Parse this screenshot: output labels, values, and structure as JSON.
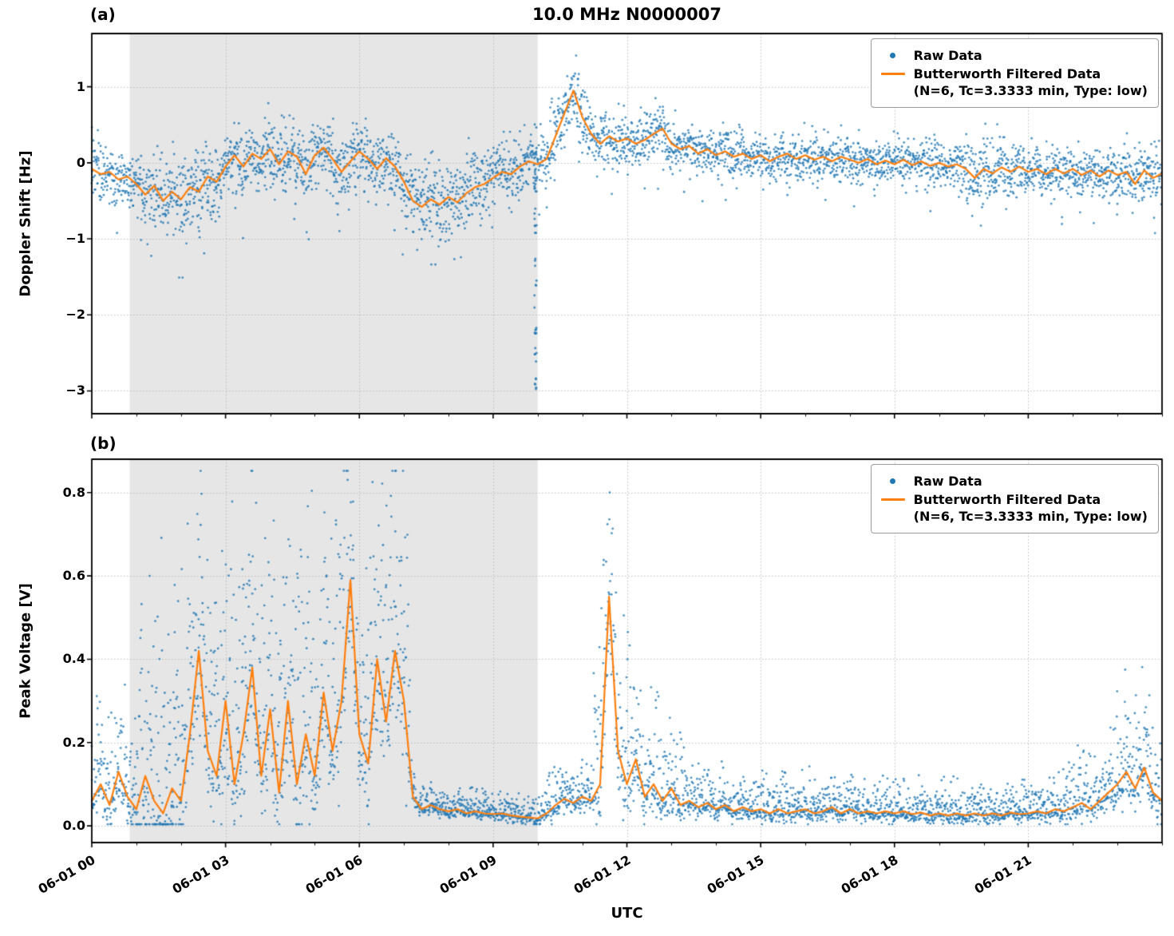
{
  "figure": {
    "title": "10.0 MHz N0000007",
    "xlabel": "UTC"
  },
  "panels": {
    "a": {
      "tag": "(a)",
      "ylabel": "Doppler Shift [Hz]"
    },
    "b": {
      "tag": "(b)",
      "ylabel": "Peak Voltage [V]"
    }
  },
  "legend": {
    "raw_label": "Raw Data",
    "filtered_label_line1": "Butterworth Filtered Data",
    "filtered_label_line2": "(N=6, Tc=3.3333 min, Type: low)"
  },
  "chart_data": [
    {
      "type": "scatter",
      "panel": "a",
      "title": "10.0 MHz N0000007",
      "ylabel": "Doppler Shift [Hz]",
      "xlabel": "",
      "x_unit": "hours UTC on 06-01",
      "xlim": [
        0,
        24
      ],
      "ylim": [
        -3.3,
        1.7
      ],
      "xticks": [
        0,
        3,
        6,
        9,
        12,
        15,
        18,
        21
      ],
      "xtick_labels": [
        "06-01 00",
        "06-01 03",
        "06-01 06",
        "06-01 09",
        "06-01 12",
        "06-01 15",
        "06-01 18",
        "06-01 21"
      ],
      "yticks": [
        1,
        0,
        -1,
        -2,
        -3
      ],
      "ytick_labels": [
        "1",
        "0",
        "−1",
        "−2",
        "−3"
      ],
      "show_xtick_labels": false,
      "grid": true,
      "legend_position": "upper right",
      "shaded_region": {
        "x0": 0.85,
        "x1": 10.0,
        "color": "#e6e6e6"
      },
      "noise_segments": [
        [
          0,
          0.9,
          0.22
        ],
        [
          0.9,
          2.5,
          0.27
        ],
        [
          2.5,
          6.9,
          0.25
        ],
        [
          6.9,
          9.0,
          0.28
        ],
        [
          9.0,
          10.25,
          0.22
        ],
        [
          10.25,
          11.2,
          0.28
        ],
        [
          11.2,
          13.2,
          0.22
        ],
        [
          13.2,
          19.4,
          0.17
        ],
        [
          19.4,
          20.6,
          0.24
        ],
        [
          20.6,
          23.0,
          0.17
        ],
        [
          23.0,
          24.01,
          0.21
        ]
      ],
      "dropout": {
        "x": 9.95,
        "y_top": 0.55,
        "y_bottom": -3.15,
        "count": 48,
        "width": 0.05
      },
      "series": [
        {
          "name": "Raw Data",
          "type": "scatter",
          "color": "#1f77b4"
        },
        {
          "name": "Butterworth Filtered Data (N=6, Tc=3.3333 min, Type: low)",
          "type": "line",
          "color": "#ff7f0e",
          "x_start": 0,
          "x_step": 0.2,
          "y": [
            -0.08,
            -0.15,
            -0.12,
            -0.22,
            -0.18,
            -0.28,
            -0.42,
            -0.3,
            -0.5,
            -0.38,
            -0.48,
            -0.32,
            -0.38,
            -0.18,
            -0.25,
            -0.05,
            0.1,
            -0.05,
            0.12,
            0.05,
            0.18,
            -0.02,
            0.15,
            0.08,
            -0.15,
            0.1,
            0.2,
            0.05,
            -0.12,
            0.02,
            0.15,
            0.05,
            -0.08,
            0.06,
            -0.05,
            -0.25,
            -0.5,
            -0.58,
            -0.48,
            -0.55,
            -0.45,
            -0.52,
            -0.4,
            -0.32,
            -0.28,
            -0.2,
            -0.12,
            -0.15,
            -0.05,
            0.02,
            -0.02,
            0.05,
            0.35,
            0.65,
            0.95,
            0.6,
            0.38,
            0.25,
            0.35,
            0.28,
            0.32,
            0.25,
            0.3,
            0.38,
            0.45,
            0.25,
            0.18,
            0.22,
            0.12,
            0.18,
            0.1,
            0.15,
            0.08,
            0.12,
            0.05,
            0.1,
            0.02,
            0.08,
            0.12,
            0.05,
            0.1,
            0.04,
            0.08,
            0.02,
            0.08,
            0.04,
            0.0,
            0.05,
            -0.02,
            0.03,
            -0.02,
            0.04,
            -0.03,
            0.02,
            -0.04,
            0.0,
            -0.05,
            -0.02,
            -0.08,
            -0.2,
            -0.08,
            -0.14,
            -0.06,
            -0.12,
            -0.05,
            -0.12,
            -0.08,
            -0.15,
            -0.08,
            -0.14,
            -0.08,
            -0.16,
            -0.1,
            -0.18,
            -0.1,
            -0.16,
            -0.12,
            -0.28,
            -0.1,
            -0.2,
            -0.14
          ]
        }
      ]
    },
    {
      "type": "scatter",
      "panel": "b",
      "title": "",
      "ylabel": "Peak Voltage [V]",
      "xlabel": "UTC",
      "x_unit": "hours UTC on 06-01",
      "xlim": [
        0,
        24
      ],
      "ylim": [
        -0.04,
        0.88
      ],
      "xticks": [
        0,
        3,
        6,
        9,
        12,
        15,
        18,
        21
      ],
      "xtick_labels": [
        "06-01 00",
        "06-01 03",
        "06-01 06",
        "06-01 09",
        "06-01 12",
        "06-01 15",
        "06-01 18",
        "06-01 21"
      ],
      "yticks": [
        0.8,
        0.6,
        0.4,
        0.2,
        0.0
      ],
      "ytick_labels": [
        "0.8",
        "0.6",
        "0.4",
        "0.2",
        "0.0"
      ],
      "show_xtick_labels": true,
      "grid": true,
      "legend_position": "upper right",
      "shaded_region": {
        "x0": 0.85,
        "x1": 10.0,
        "color": "#e6e6e6"
      },
      "noise_segments": [
        [
          0,
          1.0,
          0.05
        ],
        [
          1.0,
          7.15,
          0.13
        ],
        [
          7.15,
          10.2,
          0.013
        ],
        [
          10.2,
          11.25,
          0.022
        ],
        [
          11.25,
          12.15,
          0.09
        ],
        [
          12.15,
          13.3,
          0.05
        ],
        [
          13.3,
          16.2,
          0.022
        ],
        [
          16.2,
          21.7,
          0.018
        ],
        [
          21.7,
          22.8,
          0.03
        ],
        [
          22.8,
          24.01,
          0.05
        ]
      ],
      "series": [
        {
          "name": "Raw Data",
          "type": "scatter",
          "color": "#1f77b4"
        },
        {
          "name": "Butterworth Filtered Data (N=6, Tc=3.3333 min, Type: low)",
          "type": "line",
          "color": "#ff7f0e",
          "x_start": 0,
          "x_step": 0.2,
          "y": [
            0.06,
            0.1,
            0.05,
            0.13,
            0.07,
            0.04,
            0.12,
            0.06,
            0.03,
            0.09,
            0.06,
            0.22,
            0.42,
            0.18,
            0.12,
            0.3,
            0.1,
            0.22,
            0.38,
            0.12,
            0.28,
            0.08,
            0.3,
            0.1,
            0.22,
            0.12,
            0.32,
            0.18,
            0.3,
            0.59,
            0.22,
            0.15,
            0.4,
            0.25,
            0.42,
            0.3,
            0.07,
            0.04,
            0.05,
            0.04,
            0.035,
            0.04,
            0.03,
            0.035,
            0.03,
            0.028,
            0.03,
            0.025,
            0.022,
            0.02,
            0.018,
            0.03,
            0.05,
            0.065,
            0.055,
            0.07,
            0.06,
            0.1,
            0.55,
            0.18,
            0.1,
            0.16,
            0.07,
            0.1,
            0.06,
            0.09,
            0.05,
            0.06,
            0.045,
            0.055,
            0.04,
            0.05,
            0.035,
            0.045,
            0.035,
            0.04,
            0.03,
            0.04,
            0.03,
            0.035,
            0.04,
            0.03,
            0.035,
            0.045,
            0.03,
            0.04,
            0.03,
            0.035,
            0.03,
            0.035,
            0.03,
            0.035,
            0.028,
            0.032,
            0.025,
            0.03,
            0.025,
            0.03,
            0.025,
            0.03,
            0.025,
            0.03,
            0.025,
            0.032,
            0.028,
            0.03,
            0.035,
            0.03,
            0.04,
            0.035,
            0.045,
            0.055,
            0.04,
            0.06,
            0.08,
            0.1,
            0.13,
            0.09,
            0.14,
            0.08,
            0.06
          ]
        }
      ]
    }
  ]
}
